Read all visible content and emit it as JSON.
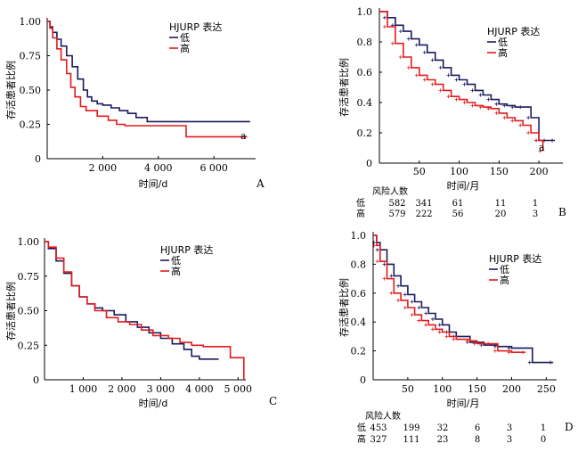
{
  "colors": {
    "low": "#1a1a5e",
    "high": "#e31a1c",
    "axis": "#000000"
  },
  "chart_data": [
    {
      "panel": "A",
      "type": "line",
      "xlabel": "时间/d",
      "ylabel": "存活患者比例",
      "xlim": [
        0,
        7500
      ],
      "ylim": [
        0,
        1
      ],
      "xticks": [
        2000,
        4000,
        6000
      ],
      "xtick_labels": [
        "2 000",
        "4 000",
        "6 000"
      ],
      "yticks": [
        0,
        0.25,
        0.5,
        0.75,
        1.0
      ],
      "ytick_labels": [
        "0",
        "0.25",
        "0.50",
        "0.75",
        "1.00"
      ],
      "legend": {
        "title": "HJURP 表达",
        "entries": [
          "低",
          "高"
        ]
      },
      "annotation": "a",
      "series": [
        {
          "name": "低",
          "x": [
            0,
            100,
            200,
            350,
            500,
            700,
            900,
            1100,
            1300,
            1450,
            1600,
            1800,
            2000,
            2300,
            2600,
            2900,
            3200,
            3600,
            4500,
            6000,
            7300
          ],
          "y": [
            1.0,
            0.96,
            0.92,
            0.87,
            0.82,
            0.75,
            0.67,
            0.58,
            0.5,
            0.45,
            0.42,
            0.4,
            0.39,
            0.37,
            0.35,
            0.33,
            0.3,
            0.27,
            0.27,
            0.27,
            0.27
          ]
        },
        {
          "name": "高",
          "x": [
            0,
            100,
            200,
            350,
            500,
            700,
            850,
            1000,
            1200,
            1400,
            1600,
            1800,
            2200,
            2500,
            2800,
            3500,
            4500,
            5000,
            6000,
            7200
          ],
          "y": [
            1.0,
            0.95,
            0.88,
            0.8,
            0.72,
            0.62,
            0.52,
            0.45,
            0.38,
            0.35,
            0.35,
            0.31,
            0.28,
            0.25,
            0.24,
            0.24,
            0.24,
            0.16,
            0.16,
            0.16
          ]
        }
      ]
    },
    {
      "panel": "B",
      "type": "line",
      "xlabel": "时间/月",
      "ylabel": "存活患者比例",
      "xlim": [
        0,
        230
      ],
      "ylim": [
        0,
        1
      ],
      "xticks": [
        50,
        100,
        150,
        200
      ],
      "xtick_labels": [
        "50",
        "100",
        "150",
        "200"
      ],
      "yticks": [
        0,
        0.2,
        0.4,
        0.6,
        0.8,
        1.0
      ],
      "ytick_labels": [
        "0",
        "0.2",
        "0.4",
        "0.6",
        "0.8",
        "1.0"
      ],
      "legend": {
        "title": "HJURP 表达",
        "entries": [
          "低",
          "高"
        ]
      },
      "annotation": "a",
      "series": [
        {
          "name": "低",
          "x": [
            0,
            10,
            20,
            30,
            40,
            50,
            60,
            70,
            80,
            90,
            100,
            110,
            120,
            130,
            140,
            150,
            160,
            170,
            180,
            190,
            200,
            210,
            220
          ],
          "y": [
            1.0,
            0.96,
            0.91,
            0.87,
            0.82,
            0.78,
            0.73,
            0.68,
            0.63,
            0.58,
            0.55,
            0.52,
            0.48,
            0.45,
            0.42,
            0.39,
            0.38,
            0.37,
            0.37,
            0.3,
            0.15,
            0.15,
            0.15
          ]
        },
        {
          "name": "高",
          "x": [
            0,
            10,
            20,
            30,
            40,
            50,
            60,
            70,
            80,
            90,
            100,
            110,
            120,
            130,
            140,
            150,
            160,
            170,
            180,
            190,
            200,
            205
          ],
          "y": [
            1.0,
            0.9,
            0.79,
            0.7,
            0.63,
            0.58,
            0.55,
            0.52,
            0.48,
            0.44,
            0.42,
            0.4,
            0.38,
            0.37,
            0.36,
            0.33,
            0.3,
            0.28,
            0.25,
            0.2,
            0.15,
            0.08
          ]
        }
      ],
      "risk_table": {
        "title": "风险人数",
        "rows": [
          {
            "label": "低",
            "values": [
              "582",
              "341",
              "61",
              "11",
              "1"
            ]
          },
          {
            "label": "高",
            "values": [
              "579",
              "222",
              "56",
              "20",
              "3"
            ]
          }
        ]
      }
    },
    {
      "panel": "C",
      "type": "line",
      "xlabel": "时间/d",
      "ylabel": "存活患者比例",
      "xlim": [
        0,
        5200
      ],
      "ylim": [
        0,
        1
      ],
      "xticks": [
        1000,
        2000,
        3000,
        4000,
        5000
      ],
      "xtick_labels": [
        "1 000",
        "2 000",
        "3 000",
        "4 000",
        "5 000"
      ],
      "yticks": [
        0,
        0.25,
        0.5,
        0.75,
        1.0
      ],
      "ytick_labels": [
        "0",
        "0.25",
        "0.50",
        "0.75",
        "1.00"
      ],
      "legend": {
        "title": "HJURP 表达",
        "entries": [
          "低",
          "高"
        ]
      },
      "series": [
        {
          "name": "低",
          "x": [
            0,
            100,
            300,
            500,
            700,
            900,
            1100,
            1300,
            1500,
            1800,
            2100,
            2400,
            2700,
            3000,
            3300,
            3600,
            3800,
            4000,
            4500
          ],
          "y": [
            1.0,
            0.95,
            0.86,
            0.77,
            0.68,
            0.6,
            0.55,
            0.52,
            0.5,
            0.47,
            0.42,
            0.38,
            0.34,
            0.3,
            0.26,
            0.22,
            0.17,
            0.15,
            0.15
          ]
        },
        {
          "name": "高",
          "x": [
            0,
            100,
            300,
            500,
            700,
            900,
            1100,
            1300,
            1600,
            1900,
            2200,
            2500,
            2800,
            3200,
            3500,
            3800,
            4100,
            4500,
            4800,
            5100,
            5150
          ],
          "y": [
            1.0,
            0.96,
            0.88,
            0.78,
            0.68,
            0.6,
            0.55,
            0.5,
            0.45,
            0.42,
            0.4,
            0.36,
            0.32,
            0.3,
            0.27,
            0.25,
            0.24,
            0.24,
            0.16,
            0.16,
            0.0
          ]
        }
      ]
    },
    {
      "panel": "D",
      "type": "line",
      "xlabel": "时间/月",
      "ylabel": "存活患者比例",
      "xlim": [
        0,
        265
      ],
      "ylim": [
        0,
        1
      ],
      "xticks": [
        50,
        100,
        150,
        200,
        250
      ],
      "xtick_labels": [
        "50",
        "100",
        "150",
        "200",
        "250"
      ],
      "yticks": [
        0,
        0.2,
        0.4,
        0.6,
        0.8,
        1.0
      ],
      "ytick_labels": [
        "0",
        "0.2",
        "0.4",
        "0.6",
        "0.8",
        "1.0"
      ],
      "legend": {
        "title": "HJURP 表达",
        "entries": [
          "低",
          "高"
        ]
      },
      "series": [
        {
          "name": "低",
          "x": [
            0,
            5,
            10,
            20,
            30,
            40,
            50,
            60,
            70,
            80,
            90,
            100,
            110,
            120,
            140,
            160,
            180,
            200,
            230,
            260
          ],
          "y": [
            1.0,
            0.95,
            0.9,
            0.8,
            0.72,
            0.65,
            0.59,
            0.54,
            0.5,
            0.46,
            0.42,
            0.38,
            0.33,
            0.3,
            0.26,
            0.24,
            0.23,
            0.22,
            0.12,
            0.12
          ]
        },
        {
          "name": "高",
          "x": [
            0,
            5,
            10,
            20,
            30,
            40,
            50,
            60,
            70,
            80,
            90,
            100,
            110,
            120,
            140,
            150,
            160,
            170,
            180,
            200,
            220
          ],
          "y": [
            1.0,
            0.93,
            0.82,
            0.7,
            0.6,
            0.55,
            0.5,
            0.45,
            0.41,
            0.38,
            0.35,
            0.33,
            0.3,
            0.28,
            0.27,
            0.25,
            0.25,
            0.25,
            0.2,
            0.19,
            0.19
          ]
        }
      ],
      "risk_table": {
        "title": "风险人数",
        "rows": [
          {
            "label": "低",
            "values": [
              "453",
              "199",
              "32",
              "6",
              "3",
              "1"
            ]
          },
          {
            "label": "高",
            "values": [
              "327",
              "111",
              "23",
              "8",
              "3",
              "0"
            ]
          }
        ]
      }
    }
  ]
}
